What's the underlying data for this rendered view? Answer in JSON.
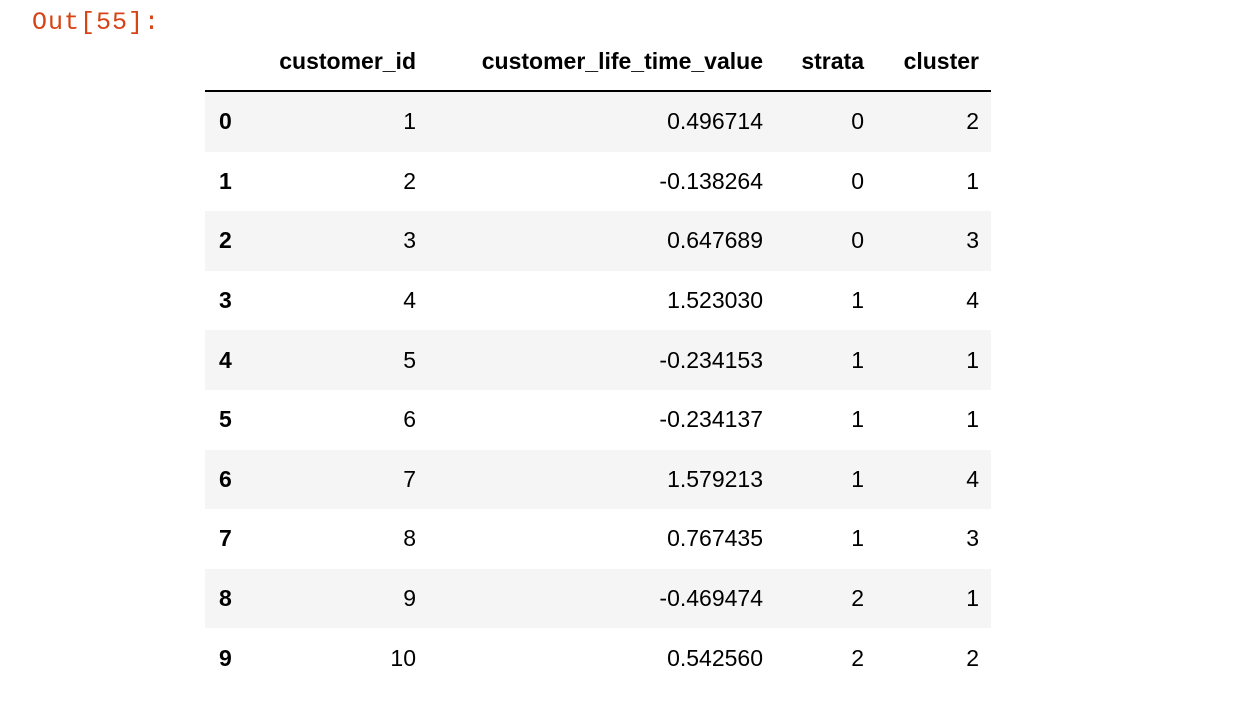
{
  "prompt": "Out[55]:",
  "table": {
    "headers": [
      "customer_id",
      "customer_life_time_value",
      "strata",
      "cluster"
    ],
    "rows": [
      [
        "0",
        "1",
        "0.496714",
        "0",
        "2"
      ],
      [
        "1",
        "2",
        "-0.138264",
        "0",
        "1"
      ],
      [
        "2",
        "3",
        "0.647689",
        "0",
        "3"
      ],
      [
        "3",
        "4",
        "1.523030",
        "1",
        "4"
      ],
      [
        "4",
        "5",
        "-0.234153",
        "1",
        "1"
      ],
      [
        "5",
        "6",
        "-0.234137",
        "1",
        "1"
      ],
      [
        "6",
        "7",
        "1.579213",
        "1",
        "4"
      ],
      [
        "7",
        "8",
        "0.767435",
        "1",
        "3"
      ],
      [
        "8",
        "9",
        "-0.469474",
        "2",
        "1"
      ],
      [
        "9",
        "10",
        "0.542560",
        "2",
        "2"
      ]
    ]
  }
}
